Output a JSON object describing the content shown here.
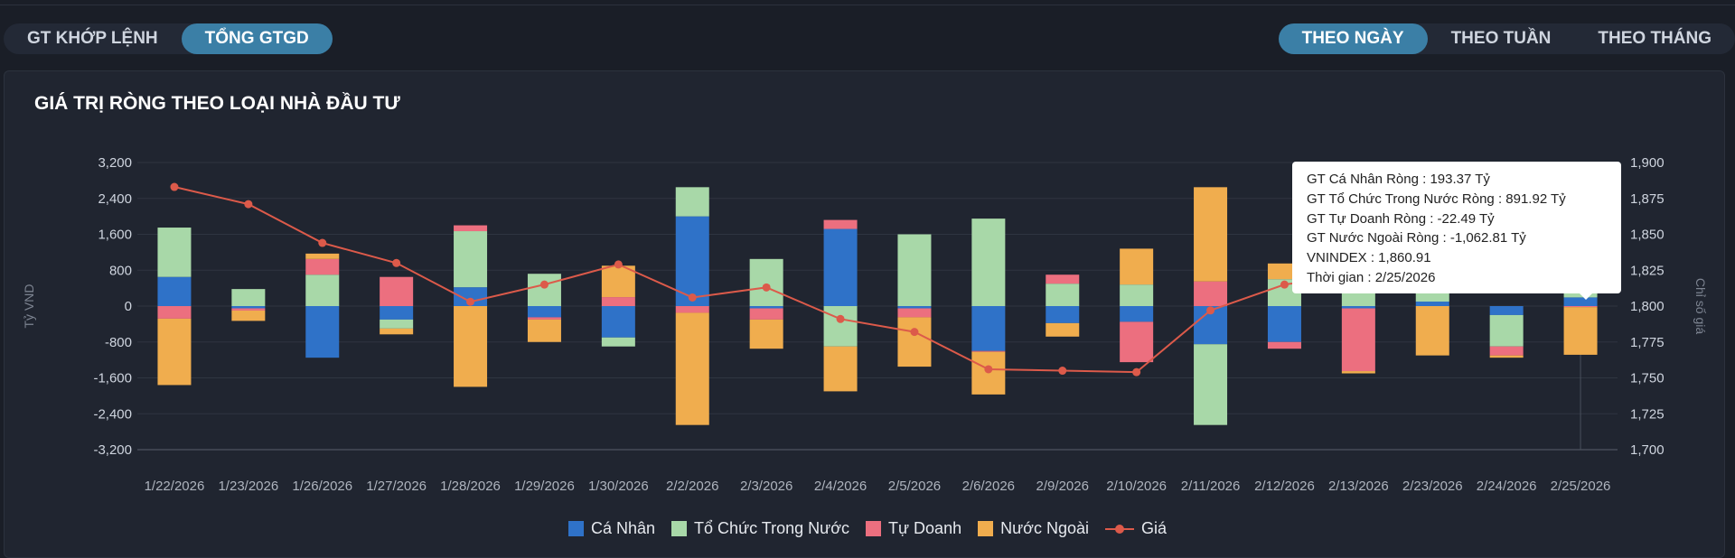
{
  "tabs_left": [
    "GT KHỚP LỆNH",
    "TỔNG GTGD"
  ],
  "tabs_left_active": 1,
  "tabs_right": [
    "THEO NGÀY",
    "THEO TUẦN",
    "THEO THÁNG"
  ],
  "tabs_right_active": 0,
  "panel_title": "GIÁ TRỊ RÒNG THEO LOẠI NHÀ ĐẦU TƯ",
  "tooltip": {
    "lines": [
      "GT Cá Nhân Ròng  : 193.37 Tỷ",
      "GT Tổ Chức Trong Nước Ròng : 891.92 Tỷ",
      "GT Tự Doanh Ròng : -22.49 Tỷ",
      "GT Nước Ngoài Ròng : -1,062.81 Tỷ",
      "VNINDEX : 1,860.91",
      "Thời gian : 2/25/2026"
    ]
  },
  "chart_data": {
    "type": "bar",
    "stacked": true,
    "categories": [
      "1/22/2026",
      "1/23/2026",
      "1/26/2026",
      "1/27/2026",
      "1/28/2026",
      "1/29/2026",
      "1/30/2026",
      "2/2/2026",
      "2/3/2026",
      "2/4/2026",
      "2/5/2026",
      "2/6/2026",
      "2/9/2026",
      "2/10/2026",
      "2/11/2026",
      "2/12/2026",
      "2/13/2026",
      "2/23/2026",
      "2/24/2026",
      "2/25/2026"
    ],
    "series": [
      {
        "name": "Cá Nhân",
        "color": "#2f72c8",
        "values": [
          650,
          -50,
          -1150,
          -300,
          420,
          -250,
          -700,
          2000,
          -50,
          1720,
          -50,
          -1000,
          -380,
          -350,
          -850,
          -800,
          -50,
          100,
          -200,
          193.37
        ]
      },
      {
        "name": "Tổ Chức Trong Nước",
        "color": "#a8d8a8",
        "values": [
          1100,
          380,
          700,
          -200,
          1250,
          720,
          -200,
          650,
          1050,
          -900,
          1600,
          1950,
          500,
          480,
          -1800,
          600,
          300,
          250,
          -700,
          891.92
        ]
      },
      {
        "name": "Tự Doanh",
        "color": "#ec6f7f",
        "values": [
          -280,
          -50,
          350,
          650,
          130,
          -50,
          200,
          -150,
          -250,
          200,
          -200,
          -20,
          200,
          -900,
          550,
          -150,
          -1400,
          150,
          -200,
          -22.49
        ]
      },
      {
        "name": "Nước Ngoài",
        "color": "#f0ad4e",
        "values": [
          -1480,
          -230,
          120,
          -130,
          -1800,
          -500,
          700,
          -2500,
          -650,
          -1000,
          -1100,
          -950,
          -300,
          800,
          2100,
          350,
          -50,
          -1100,
          -50,
          -1062.81
        ]
      }
    ],
    "line": {
      "name": "Giá",
      "color": "#dc5a4a",
      "values": [
        1883,
        1871,
        1844,
        1830,
        1803,
        1815,
        1829,
        1806,
        1813,
        1791,
        1782,
        1756,
        1755,
        1754,
        1797,
        1815,
        1822,
        1830,
        1835,
        1860.91
      ]
    },
    "y_left": {
      "label": "Tỷ VND",
      "min": -3200,
      "max": 3200,
      "ticks": [
        3200,
        2400,
        1600,
        800,
        0,
        -800,
        -1600,
        -2400,
        -3200
      ],
      "tick_labels": [
        "3,200",
        "2,400",
        "1,600",
        "800",
        "0",
        "-800",
        "-1,600",
        "-2,400",
        "-3,200"
      ]
    },
    "y_right": {
      "label": "Chỉ số giá",
      "min": 1700,
      "max": 1900,
      "ticks": [
        1900,
        1875,
        1850,
        1825,
        1800,
        1775,
        1750,
        1725,
        1700
      ],
      "tick_labels": [
        "1,900",
        "1,875",
        "1,850",
        "1,825",
        "1,800",
        "1,775",
        "1,750",
        "1,725",
        "1,700"
      ]
    },
    "grid": true,
    "legend": "bottom"
  }
}
